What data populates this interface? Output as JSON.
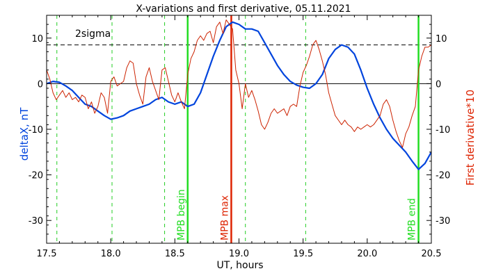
{
  "chart_data": {
    "type": "line",
    "title": "X-variations and first derivative, 05.11.2021",
    "xlabel": "UT, hours",
    "ylabel_left": "deltaX, nT",
    "ylabel_right": "First derivative*10",
    "xlim": [
      17.5,
      20.5
    ],
    "ylim": [
      -35,
      15
    ],
    "x_ticks": [
      17.5,
      18.0,
      18.5,
      19.0,
      19.5,
      20.0,
      20.5
    ],
    "x_tick_labels": [
      "17.5",
      "18.0",
      "18.5",
      "19.0",
      "19.5",
      "20.0",
      "20.5"
    ],
    "y_ticks": [
      -30,
      -20,
      -10,
      0,
      10
    ],
    "y_tick_labels": [
      "-30",
      "-20",
      "-10",
      "0",
      "10"
    ],
    "threshold": {
      "label": "2sigma",
      "value": 8.5
    },
    "zero_line": 0,
    "dashed_verticals": [
      17.58,
      18.01,
      18.42,
      19.05,
      19.52
    ],
    "markers": [
      {
        "x": 18.6,
        "label": "MPB begin",
        "color": "#22dd22"
      },
      {
        "x": 18.94,
        "label": "MPB max",
        "color": "#dd2200"
      },
      {
        "x": 20.4,
        "label": "MPB end",
        "color": "#22dd22"
      }
    ],
    "series": [
      {
        "name": "deltaX, nT",
        "color": "#0044dd",
        "x": [
          17.5,
          17.55,
          17.6,
          17.65,
          17.7,
          17.75,
          17.8,
          17.85,
          17.9,
          17.95,
          18.0,
          18.05,
          18.1,
          18.15,
          18.2,
          18.25,
          18.3,
          18.35,
          18.4,
          18.45,
          18.5,
          18.55,
          18.6,
          18.65,
          18.7,
          18.75,
          18.8,
          18.85,
          18.9,
          18.95,
          19.0,
          19.05,
          19.1,
          19.15,
          19.2,
          19.25,
          19.3,
          19.35,
          19.4,
          19.45,
          19.5,
          19.55,
          19.6,
          19.65,
          19.7,
          19.75,
          19.8,
          19.85,
          19.9,
          19.95,
          20.0,
          20.05,
          20.1,
          20.15,
          20.2,
          20.25,
          20.3,
          20.35,
          20.4,
          20.45,
          20.5
        ],
        "values": [
          0.0,
          0.5,
          0.3,
          -0.5,
          -1.5,
          -3.0,
          -4.5,
          -5.0,
          -6.0,
          -7.0,
          -7.8,
          -7.5,
          -7.0,
          -6.0,
          -5.5,
          -5.0,
          -4.5,
          -3.5,
          -3.0,
          -4.0,
          -4.5,
          -4.0,
          -5.0,
          -4.5,
          -2.0,
          2.0,
          6.0,
          9.5,
          12.5,
          13.5,
          13.0,
          12.0,
          12.0,
          11.5,
          9.0,
          6.5,
          4.0,
          2.0,
          0.5,
          -0.3,
          -0.8,
          -1.0,
          0.0,
          2.0,
          5.5,
          7.5,
          8.5,
          8.0,
          6.5,
          3.0,
          -1.0,
          -4.5,
          -7.5,
          -10.0,
          -12.0,
          -13.5,
          -15.0,
          -17.0,
          -18.8,
          -17.5,
          -15.0
        ]
      },
      {
        "name": "First derivative*10",
        "color": "#cc2200",
        "x": [
          17.5,
          17.525,
          17.55,
          17.575,
          17.6,
          17.625,
          17.65,
          17.675,
          17.7,
          17.725,
          17.75,
          17.775,
          17.8,
          17.825,
          17.85,
          17.875,
          17.9,
          17.925,
          17.95,
          17.975,
          18.0,
          18.025,
          18.05,
          18.075,
          18.1,
          18.125,
          18.15,
          18.175,
          18.2,
          18.225,
          18.25,
          18.275,
          18.3,
          18.325,
          18.35,
          18.375,
          18.4,
          18.425,
          18.45,
          18.475,
          18.5,
          18.525,
          18.55,
          18.575,
          18.6,
          18.625,
          18.65,
          18.675,
          18.7,
          18.725,
          18.75,
          18.775,
          18.8,
          18.825,
          18.85,
          18.875,
          18.9,
          18.925,
          18.95,
          18.975,
          19.0,
          19.025,
          19.05,
          19.075,
          19.1,
          19.125,
          19.15,
          19.175,
          19.2,
          19.225,
          19.25,
          19.275,
          19.3,
          19.325,
          19.35,
          19.375,
          19.4,
          19.425,
          19.45,
          19.475,
          19.5,
          19.525,
          19.55,
          19.575,
          19.6,
          19.625,
          19.65,
          19.675,
          19.7,
          19.725,
          19.75,
          19.775,
          19.8,
          19.825,
          19.85,
          19.875,
          19.9,
          19.925,
          19.95,
          19.975,
          20.0,
          20.025,
          20.05,
          20.075,
          20.1,
          20.125,
          20.15,
          20.175,
          20.2,
          20.225,
          20.25,
          20.275,
          20.3,
          20.325,
          20.35,
          20.375,
          20.4,
          20.425,
          20.45,
          20.475,
          20.5
        ],
        "values": [
          3.0,
          1.0,
          -2.0,
          -3.5,
          -2.5,
          -1.5,
          -3.0,
          -2.0,
          -3.5,
          -3.0,
          -4.0,
          -2.5,
          -3.0,
          -5.5,
          -4.0,
          -6.5,
          -5.0,
          -2.0,
          -3.0,
          -6.5,
          0.5,
          1.5,
          -0.5,
          0.0,
          0.5,
          3.5,
          5.0,
          4.5,
          0.0,
          -2.5,
          -4.5,
          1.5,
          3.5,
          0.5,
          -1.5,
          -3.5,
          3.0,
          3.5,
          0.5,
          -2.5,
          -4.0,
          -2.0,
          -4.0,
          -5.5,
          2.0,
          5.5,
          7.0,
          9.5,
          10.5,
          9.5,
          11.0,
          11.5,
          9.0,
          12.5,
          13.5,
          11.0,
          14.0,
          13.0,
          12.0,
          3.0,
          0.0,
          -5.5,
          0.0,
          -3.0,
          -1.5,
          -3.5,
          -6.0,
          -9.0,
          -10.0,
          -8.5,
          -6.5,
          -5.5,
          -6.5,
          -6.0,
          -5.5,
          -7.0,
          -5.0,
          -4.5,
          -5.0,
          -0.5,
          2.5,
          4.0,
          6.0,
          8.5,
          9.5,
          7.5,
          5.0,
          2.0,
          -2.0,
          -4.5,
          -7.0,
          -8.0,
          -9.0,
          -8.0,
          -9.0,
          -9.5,
          -10.5,
          -9.5,
          -10.0,
          -9.5,
          -9.0,
          -9.5,
          -9.0,
          -8.0,
          -7.0,
          -4.5,
          -3.5,
          -5.0,
          -8.0,
          -10.5,
          -12.5,
          -14.0,
          -11.0,
          -9.5,
          -7.0,
          -5.0,
          3.0,
          6.0,
          8.0,
          8.0,
          8.5
        ]
      }
    ]
  }
}
